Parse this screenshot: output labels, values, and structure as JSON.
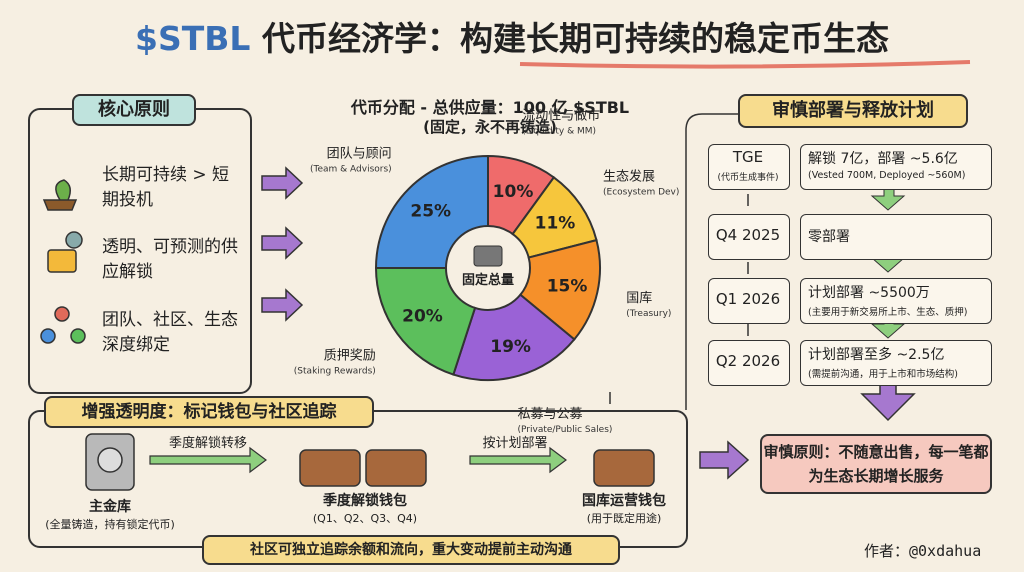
{
  "title": {
    "brand": "$STBL",
    "text": "代币经济学：构建长期可持续的稳定币生态"
  },
  "principles": {
    "heading": "核心原则",
    "items": [
      "长期可持续 > 短期投机",
      "透明、可预测的供应解锁",
      "团队、社区、生态深度绑定"
    ]
  },
  "allocation": {
    "title": "代币分配 - 总供应量：100 亿 $STBL",
    "subtitle": "(固定，永不再铸造)",
    "center": "固定总量",
    "segments": [
      {
        "name": "流动性与做市",
        "name_en": "(Liquidity & MM)",
        "value": 10,
        "value_label": "10%",
        "color": "#ef6b6b"
      },
      {
        "name": "生态发展",
        "name_en": "(Ecosystem Dev)",
        "value": 11,
        "value_label": "11%",
        "color": "#f6c63c"
      },
      {
        "name": "国库",
        "name_en": "(Treasury)",
        "value": 15,
        "value_label": "15%",
        "color": "#f5902a"
      },
      {
        "name": "私募与公募",
        "name_en": "(Private/Public Sales)",
        "value": 19,
        "value_label": "19%",
        "color": "#9a62d6"
      },
      {
        "name": "质押奖励",
        "name_en": "(Staking Rewards)",
        "value": 20,
        "value_label": "20%",
        "color": "#5cbf5c"
      },
      {
        "name": "团队与顾问",
        "name_en": "(Team & Advisors)",
        "value": 25,
        "value_label": "25%",
        "color": "#4a90dc"
      }
    ]
  },
  "schedule": {
    "heading": "审慎部署与释放计划",
    "rows": [
      {
        "period": "TGE",
        "period_note": "(代币生成事件)",
        "plan": "解锁 7亿，部署 ~5.6亿",
        "note": "(Vested 700M, Deployed ~560M)"
      },
      {
        "period": "Q4 2025",
        "plan": "零部署"
      },
      {
        "period": "Q1 2026",
        "plan": "计划部署 ~5500万",
        "note": "(主要用于新交易所上市、生态、质押)"
      },
      {
        "period": "Q2 2026",
        "plan": "计划部署至多 ~2.5亿",
        "note": "(需提前沟通，用于上市和市场结构)"
      }
    ],
    "principle": "审慎原则：不随意出售，每一笔都为生态长期增长服务"
  },
  "transparency": {
    "heading": "增强透明度：标记钱包与社区追踪",
    "nodes": [
      {
        "label": "主金库",
        "note": "(全量铸造，持有锁定代币)"
      },
      {
        "label": "季度解锁钱包",
        "note": "(Q1、Q2、Q3、Q4)"
      },
      {
        "label": "国库运营钱包",
        "note": "(用于既定用途)"
      }
    ],
    "flows": [
      "季度解锁转移",
      "按计划部署"
    ],
    "footer": "社区可独立追踪余额和流向，重大变动提前主动沟通"
  },
  "author": "作者：@0xdahua"
}
